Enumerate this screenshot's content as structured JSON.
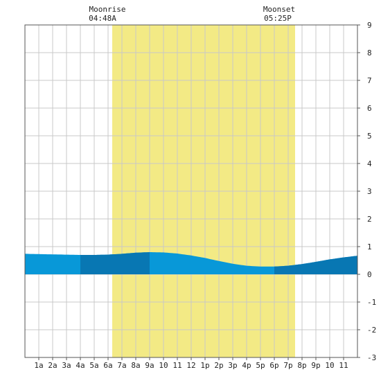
{
  "header": {
    "moonrise_label": "Moonrise",
    "moonrise_time": "04:48A",
    "moonset_label": "Moonset",
    "moonset_time": "05:25P"
  },
  "colors": {
    "daylight": "#f3ea85",
    "tide_fill": "#0898d8",
    "tide_fill_dark": "#0877b3",
    "grid": "#c8c8c8",
    "frame": "#555555",
    "text": "#222222"
  },
  "chart_data": {
    "type": "area",
    "title": "",
    "xlabel": "",
    "ylabel": "",
    "x_hours": [
      0,
      1,
      2,
      3,
      4,
      5,
      6,
      7,
      8,
      9,
      10,
      11,
      12,
      13,
      14,
      15,
      16,
      17,
      18,
      19,
      20,
      21,
      22,
      23,
      24
    ],
    "xlim": [
      0,
      24
    ],
    "ylim": [
      -3,
      9
    ],
    "y_ticks": [
      9,
      8,
      7,
      6,
      5,
      4,
      3,
      2,
      1,
      0,
      -1,
      -2,
      -3
    ],
    "y_axis_side": "right",
    "x_tick_labels": [
      "1a",
      "2a",
      "3a",
      "4a",
      "5a",
      "6a",
      "7a",
      "8a",
      "9a",
      "10",
      "11",
      "12",
      "1p",
      "2p",
      "3p",
      "4p",
      "5p",
      "6p",
      "7p",
      "8p",
      "9p",
      "10",
      "11"
    ],
    "x_tick_hours": [
      1,
      2,
      3,
      4,
      5,
      6,
      7,
      8,
      9,
      10,
      11,
      12,
      13,
      14,
      15,
      16,
      17,
      18,
      19,
      20,
      21,
      22,
      23
    ],
    "daylight": {
      "start": 6.3,
      "end": 19.5
    },
    "dark_bands": [
      [
        4,
        9
      ],
      [
        18,
        24
      ]
    ],
    "grid": true,
    "series": [
      {
        "values": [
          0.74,
          0.73,
          0.72,
          0.71,
          0.7,
          0.7,
          0.71,
          0.74,
          0.78,
          0.8,
          0.79,
          0.75,
          0.68,
          0.59,
          0.48,
          0.38,
          0.31,
          0.28,
          0.28,
          0.31,
          0.37,
          0.45,
          0.54,
          0.61,
          0.67
        ]
      }
    ]
  }
}
